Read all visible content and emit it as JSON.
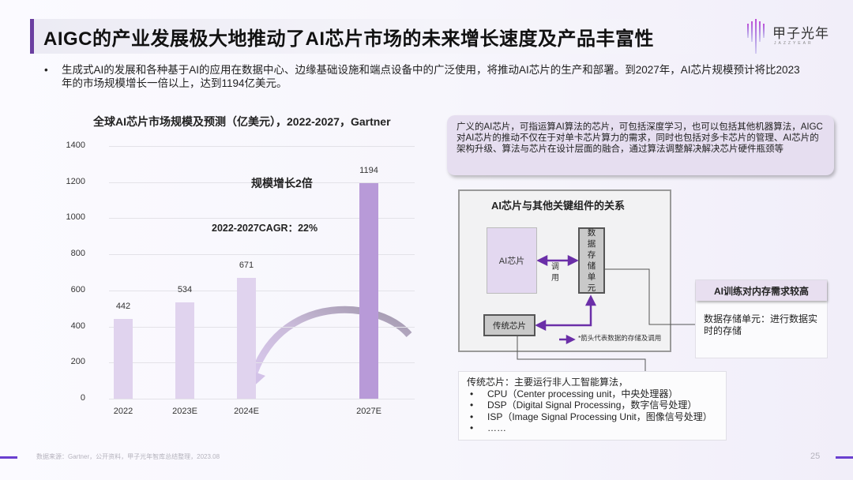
{
  "header": {
    "title": "AIGC的产业发展极大地推动了AI芯片市场的未来增长速度及产品丰富性",
    "logo_text": "甲子光年",
    "logo_subtext": "JAZZYEAR",
    "accent_color": "#6b3fa0"
  },
  "intro": {
    "bullet": "•",
    "text": "生成式AI的发展和各种基于AI的应用在数据中心、边缘基础设施和端点设备中的广泛使用，将推动AI芯片的生产和部署。到2027年，AI芯片规模预计将比2023年的市场规模增长一倍以上，达到1194亿美元。"
  },
  "chart_data": {
    "type": "bar",
    "title": "全球AI芯片市场规模及预测（亿美元），2022-2027，Gartner",
    "xlabel": "",
    "ylabel": "",
    "categories": [
      "2022",
      "2023E",
      "2024E",
      "2027E"
    ],
    "values": [
      442,
      534,
      671,
      1194
    ],
    "value_labels": [
      "442",
      "534",
      "671",
      "1194"
    ],
    "y_ticks": [
      "1400",
      "1200",
      "1000",
      "800",
      "600",
      "400",
      "200",
      "0"
    ],
    "ylim": [
      0,
      1400
    ],
    "grid": true,
    "legend": "none",
    "bar_colors": [
      "#e0d3ee",
      "#e0d3ee",
      "#e0d3ee",
      "#b89ad8"
    ],
    "annotations": [
      "规模增长2倍",
      "2022-2027CAGR：22%"
    ]
  },
  "definition_box": {
    "text": "广义的AI芯片，可指运算AI算法的芯片，可包括深度学习，也可以包括其他机器算法，AIGC对AI芯片的推动不仅在于对单卡芯片算力的需求，同时也包括对多卡芯片的管理、AI芯片的架构升级、算法与芯片在设计层面的融合，通过算法调整解决解决芯片硬件瓶颈等"
  },
  "diagram": {
    "title": "AI芯片与其他关键组件的关系",
    "ai_chip": "AI芯片",
    "storage_chars": [
      "数",
      "据",
      "存",
      "储",
      "单",
      "元"
    ],
    "traditional_chip": "传统芯片",
    "call_label_chars": [
      "调",
      "用"
    ],
    "legend": "*箭头代表数据的存储及调用",
    "arrow_color": "#6b2fa8"
  },
  "side_box": {
    "header": "AI训练对内存需求较高",
    "body": "数据存储单元：进行数据实时的存储"
  },
  "traditional_box": {
    "heading": "传统芯片：主要运行非人工智能算法，",
    "items": [
      "CPU（Center processing unit，中央处理器）",
      "DSP（Digital Signal Processing，数字信号处理）",
      "ISP（Image Signal Processing Unit，图像信号处理）",
      "……"
    ],
    "bullet": "•"
  },
  "footer": {
    "source": "数据来源：Gartner，公开资料，甲子光年智库总结整理，2023.08",
    "page_number": "25"
  }
}
